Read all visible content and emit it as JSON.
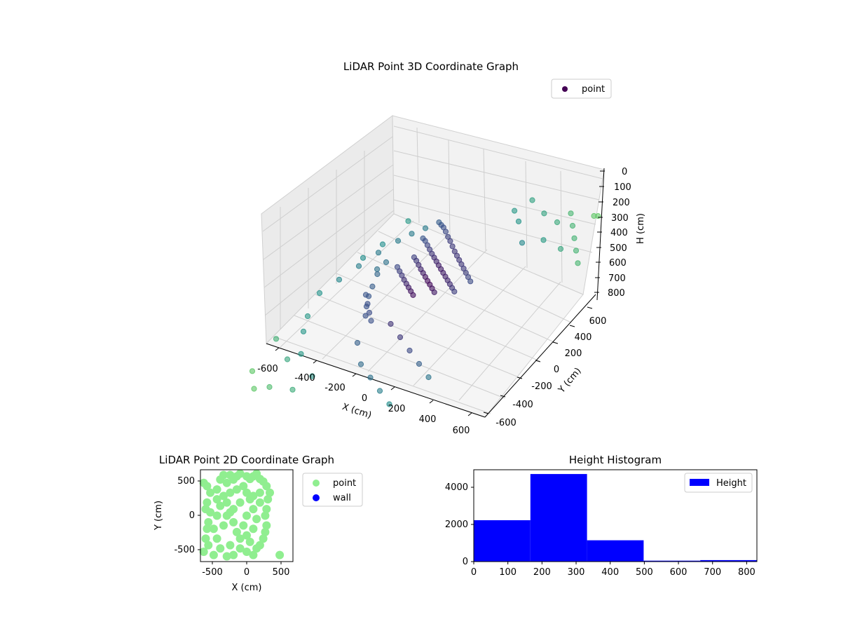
{
  "chart_data": [
    {
      "type": "scatter",
      "projection": "3d",
      "title": "LiDAR Point 3D Coordinate Graph",
      "xlabel": "X (cm)",
      "ylabel": "Y (cm)",
      "zlabel": "H (cm)",
      "xlim": [
        -700,
        700
      ],
      "ylim": [
        -700,
        700
      ],
      "zlim": [
        0,
        850
      ],
      "z_axis_inverted": true,
      "xticks": [
        "-600",
        "-400",
        "-200",
        "0",
        "200",
        "400",
        "600"
      ],
      "yticks": [
        "-600",
        "-400",
        "-200",
        "0",
        "200",
        "400",
        "600"
      ],
      "zticks": [
        "0",
        "100",
        "200",
        "300",
        "400",
        "500",
        "600",
        "700",
        "800"
      ],
      "grid": true,
      "legend": {
        "position": "top-right",
        "entries": [
          {
            "label": "point",
            "color": "#440154"
          }
        ]
      },
      "colormap": "viridis",
      "series": [
        {
          "name": "point",
          "points": [
            [
              -150,
              320,
              180
            ],
            [
              -120,
              300,
              175
            ],
            [
              -90,
              280,
              170
            ],
            [
              -60,
              260,
              175
            ],
            [
              -30,
              240,
              185
            ],
            [
              0,
              220,
              190
            ],
            [
              30,
              200,
              200
            ],
            [
              60,
              180,
              210
            ],
            [
              90,
              160,
              215
            ],
            [
              120,
              140,
              220
            ],
            [
              150,
              120,
              225
            ],
            [
              180,
              100,
              230
            ],
            [
              210,
              80,
              235
            ],
            [
              240,
              60,
              240
            ],
            [
              270,
              40,
              245
            ],
            [
              -200,
              250,
              250
            ],
            [
              -170,
              230,
              245
            ],
            [
              -140,
              210,
              250
            ],
            [
              -110,
              190,
              255
            ],
            [
              -80,
              170,
              260
            ],
            [
              -50,
              150,
              262
            ],
            [
              -20,
              130,
              265
            ],
            [
              10,
              110,
              268
            ],
            [
              40,
              90,
              270
            ],
            [
              70,
              70,
              272
            ],
            [
              100,
              50,
              274
            ],
            [
              130,
              30,
              276
            ],
            [
              160,
              10,
              278
            ],
            [
              190,
              -10,
              280
            ],
            [
              220,
              -30,
              282
            ],
            [
              -180,
              150,
              300
            ],
            [
              -150,
              130,
              300
            ],
            [
              -120,
              110,
              305
            ],
            [
              -90,
              90,
              310
            ],
            [
              -60,
              70,
              312
            ],
            [
              -30,
              50,
              315
            ],
            [
              0,
              30,
              318
            ],
            [
              30,
              10,
              320
            ],
            [
              60,
              -10,
              322
            ],
            [
              90,
              -30,
              325
            ],
            [
              -250,
              100,
              350
            ],
            [
              -220,
              80,
              355
            ],
            [
              -190,
              60,
              360
            ],
            [
              -160,
              40,
              365
            ],
            [
              -130,
              20,
              368
            ],
            [
              -100,
              0,
              370
            ],
            [
              -70,
              -20,
              372
            ],
            [
              -40,
              -40,
              375
            ],
            [
              -300,
              -100,
              420
            ],
            [
              -250,
              -150,
              430
            ],
            [
              -200,
              -200,
              440
            ],
            [
              -150,
              -250,
              445
            ],
            [
              -320,
              -50,
              460
            ],
            [
              -280,
              -120,
              470
            ],
            [
              -240,
              -180,
              480
            ],
            [
              -350,
              20,
              450
            ],
            [
              -400,
              200,
              420
            ],
            [
              -420,
              150,
              440
            ],
            [
              -380,
              100,
              430
            ],
            [
              -550,
              -300,
              600
            ],
            [
              -450,
              -450,
              620
            ],
            [
              -300,
              -550,
              650
            ],
            [
              -600,
              -200,
              580
            ],
            [
              -500,
              -500,
              640
            ],
            [
              -350,
              -650,
              690
            ],
            [
              -650,
              -400,
              620
            ],
            [
              -650,
              -600,
              700
            ],
            [
              -500,
              -650,
              720
            ],
            [
              -600,
              -650,
              760
            ],
            [
              500,
              600,
              150
            ],
            [
              550,
              550,
              180
            ],
            [
              600,
              500,
              210
            ],
            [
              450,
              650,
              120
            ],
            [
              650,
              450,
              240
            ],
            [
              400,
              600,
              160
            ],
            [
              600,
              650,
              90
            ],
            [
              650,
              620,
              60
            ],
            [
              500,
              500,
              230
            ],
            [
              300,
              620,
              150
            ],
            [
              200,
              650,
              120
            ],
            [
              100,
              630,
              200
            ],
            [
              350,
              550,
              250
            ],
            [
              250,
              500,
              270
            ],
            [
              150,
              600,
              230
            ],
            [
              -300,
              400,
              300
            ],
            [
              -350,
              350,
              320
            ],
            [
              -400,
              300,
              350
            ],
            [
              -450,
              200,
              380
            ],
            [
              -500,
              100,
              420
            ],
            [
              -550,
              0,
              460
            ],
            [
              -600,
              -100,
              500
            ],
            [
              -450,
              450,
              330
            ],
            [
              -500,
              300,
              400
            ],
            [
              -550,
              200,
              440
            ],
            [
              0,
              -200,
              520
            ],
            [
              100,
              -250,
              540
            ],
            [
              200,
              -300,
              560
            ],
            [
              300,
              -350,
              580
            ],
            [
              -100,
              -150,
              500
            ],
            [
              -200,
              -300,
              560
            ],
            [
              -100,
              -400,
              600
            ],
            [
              0,
              -450,
              620
            ],
            [
              100,
              -500,
              640
            ],
            [
              200,
              -550,
              660
            ]
          ]
        }
      ]
    },
    {
      "type": "scatter",
      "title": "LiDAR Point 2D Coordinate Graph",
      "xlabel": "X (cm)",
      "ylabel": "Y (cm)",
      "xlim": [
        -700,
        700
      ],
      "ylim": [
        -700,
        700
      ],
      "xticks": [
        "-500",
        "0",
        "500"
      ],
      "yticks": [
        "-500",
        "0",
        "500"
      ],
      "grid": false,
      "legend": {
        "position": "right-outside",
        "entries": [
          {
            "label": "point",
            "color": "#90ee90"
          },
          {
            "label": "wall",
            "color": "#0000ff"
          }
        ]
      },
      "series": [
        {
          "name": "point",
          "color": "#90ee90",
          "points": [
            [
              -650,
              500
            ],
            [
              -600,
              450
            ],
            [
              -550,
              350
            ],
            [
              -600,
              200
            ],
            [
              -620,
              100
            ],
            [
              -580,
              -100
            ],
            [
              -600,
              -200
            ],
            [
              -620,
              -350
            ],
            [
              -580,
              -450
            ],
            [
              -650,
              -550
            ],
            [
              -500,
              -600
            ],
            [
              -450,
              400
            ],
            [
              -400,
              550
            ],
            [
              -350,
              620
            ],
            [
              -300,
              500
            ],
            [
              -250,
              620
            ],
            [
              -200,
              550
            ],
            [
              -150,
              600
            ],
            [
              -100,
              640
            ],
            [
              0,
              600
            ],
            [
              50,
              560
            ],
            [
              100,
              600
            ],
            [
              150,
              640
            ],
            [
              200,
              560
            ],
            [
              250,
              520
            ],
            [
              300,
              450
            ],
            [
              350,
              350
            ],
            [
              320,
              250
            ],
            [
              300,
              100
            ],
            [
              280,
              0
            ],
            [
              300,
              -150
            ],
            [
              280,
              -250
            ],
            [
              250,
              -350
            ],
            [
              200,
              -450
            ],
            [
              150,
              -500
            ],
            [
              100,
              -600
            ],
            [
              0,
              -550
            ],
            [
              -100,
              -500
            ],
            [
              -200,
              -600
            ],
            [
              -300,
              -620
            ],
            [
              -400,
              -500
            ],
            [
              -450,
              -350
            ],
            [
              -500,
              -200
            ],
            [
              -450,
              0
            ],
            [
              -400,
              150
            ],
            [
              -350,
              300
            ],
            [
              -300,
              200
            ],
            [
              -250,
              50
            ],
            [
              -200,
              -100
            ],
            [
              -150,
              -250
            ],
            [
              -100,
              -350
            ],
            [
              0,
              -300
            ],
            [
              100,
              -200
            ],
            [
              150,
              -50
            ],
            [
              100,
              100
            ],
            [
              50,
              250
            ],
            [
              0,
              350
            ],
            [
              -50,
              450
            ],
            [
              -150,
              400
            ],
            [
              -250,
              350
            ],
            [
              -300,
              0
            ],
            [
              -200,
              100
            ],
            [
              -100,
              200
            ],
            [
              0,
              0
            ],
            [
              100,
              300
            ],
            [
              200,
              200
            ],
            [
              -350,
              -150
            ],
            [
              -250,
              -450
            ],
            [
              -50,
              -150
            ],
            [
              50,
              -400
            ],
            [
              200,
              350
            ],
            [
              -450,
              250
            ],
            [
              -550,
              50
            ],
            [
              500,
              -600
            ]
          ]
        },
        {
          "name": "wall",
          "color": "#0000ff",
          "points": []
        }
      ]
    },
    {
      "type": "bar",
      "subtype": "histogram",
      "title": "Height Histogram",
      "xlabel": "",
      "ylabel": "",
      "xlim": [
        0,
        830
      ],
      "ylim": [
        0,
        4950
      ],
      "xticks": [
        "0",
        "100",
        "200",
        "300",
        "400",
        "500",
        "600",
        "700",
        "800"
      ],
      "yticks": [
        "0",
        "2000",
        "4000"
      ],
      "grid": false,
      "legend": {
        "position": "top-right",
        "entries": [
          {
            "label": "Height",
            "color": "#0000ff"
          }
        ]
      },
      "bin_edges": [
        0,
        166,
        332,
        498,
        664,
        830
      ],
      "series": [
        {
          "name": "Height",
          "color": "#0000ff",
          "values": [
            2230,
            4720,
            1150,
            50,
            80
          ]
        }
      ]
    }
  ]
}
